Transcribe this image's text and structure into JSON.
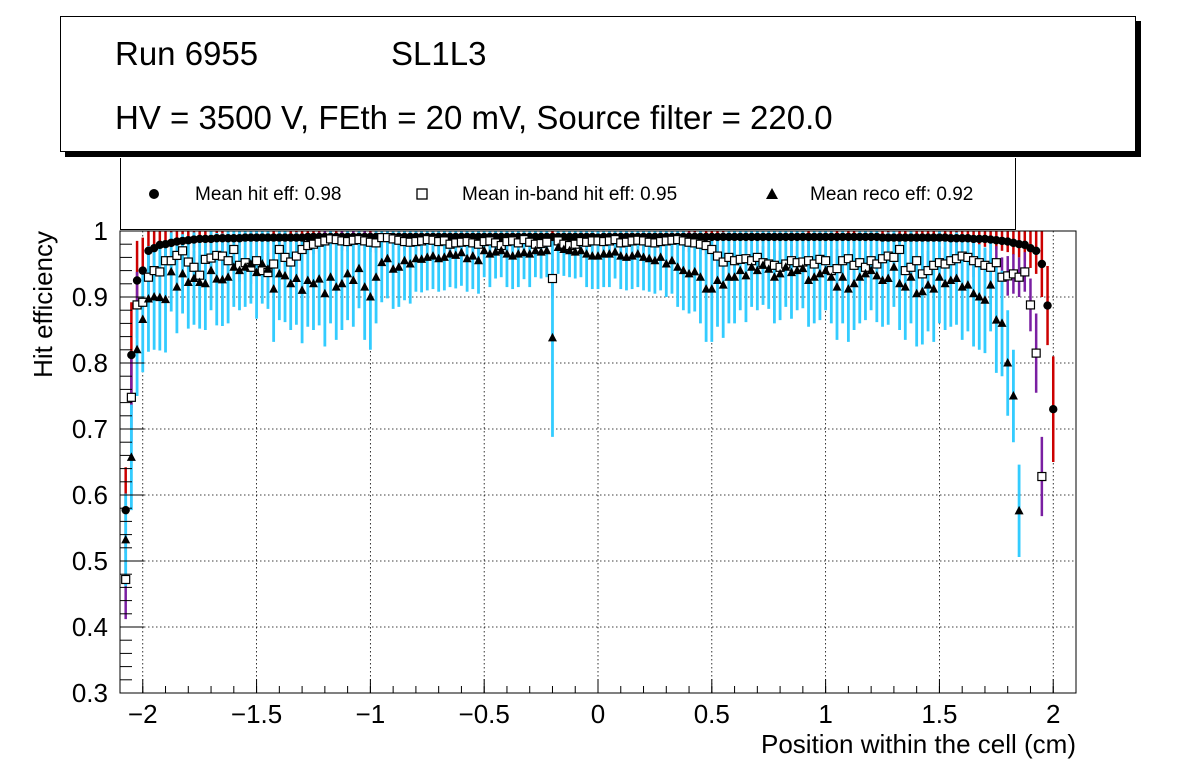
{
  "header": {
    "run_label": "Run 6955",
    "layer_label": "SL1L3",
    "conditions": "HV = 3500 V, FEth = 20 mV, Source filter = 220.0"
  },
  "legend": {
    "hit": "Mean hit  eff: 0.98",
    "inband": "Mean in-band hit eff: 0.95",
    "reco": "Mean reco eff: 0.92"
  },
  "colors": {
    "hit_err": "#cc0000",
    "inband_err": "#7a1fa2",
    "reco_err": "#33ccff",
    "marker": "#000000"
  },
  "chart_data": {
    "type": "scatter",
    "title": "",
    "xlabel": "Position within the cell (cm)",
    "ylabel": "Hit efficiency",
    "xlim": [
      -2.1,
      2.1
    ],
    "ylim": [
      0.3,
      1.0
    ],
    "xticks": [
      -2,
      -1.5,
      -1,
      -0.5,
      0,
      0.5,
      1,
      1.5,
      2
    ],
    "xtick_labels": [
      "−2",
      "−1.5",
      "−1",
      "−0.5",
      "0",
      "0.5",
      "1",
      "1.5",
      "2"
    ],
    "yticks": [
      0.3,
      0.4,
      0.5,
      0.6,
      0.7,
      0.8,
      0.9,
      1.0
    ],
    "ytick_labels": [
      "0.3",
      "0.4",
      "0.5",
      "0.6",
      "0.7",
      "0.8",
      "0.9",
      "1"
    ],
    "grid": true,
    "x": [
      -2.075,
      -2.05,
      -2.025,
      -2.0,
      -1.975,
      -1.95,
      -1.925,
      -1.9,
      -1.875,
      -1.85,
      -1.825,
      -1.8,
      -1.775,
      -1.75,
      -1.725,
      -1.7,
      -1.675,
      -1.65,
      -1.625,
      -1.6,
      -1.575,
      -1.55,
      -1.525,
      -1.5,
      -1.475,
      -1.45,
      -1.425,
      -1.4,
      -1.375,
      -1.35,
      -1.325,
      -1.3,
      -1.275,
      -1.25,
      -1.225,
      -1.2,
      -1.175,
      -1.15,
      -1.125,
      -1.1,
      -1.075,
      -1.05,
      -1.025,
      -1.0,
      -0.975,
      -0.95,
      -0.925,
      -0.9,
      -0.875,
      -0.85,
      -0.825,
      -0.8,
      -0.775,
      -0.75,
      -0.725,
      -0.7,
      -0.675,
      -0.65,
      -0.625,
      -0.6,
      -0.575,
      -0.55,
      -0.525,
      -0.5,
      -0.475,
      -0.45,
      -0.425,
      -0.4,
      -0.375,
      -0.35,
      -0.325,
      -0.3,
      -0.275,
      -0.25,
      -0.225,
      -0.2,
      -0.175,
      -0.15,
      -0.125,
      -0.1,
      -0.075,
      -0.05,
      -0.025,
      0.0,
      0.025,
      0.05,
      0.075,
      0.1,
      0.125,
      0.15,
      0.175,
      0.2,
      0.225,
      0.25,
      0.275,
      0.3,
      0.325,
      0.35,
      0.375,
      0.4,
      0.425,
      0.45,
      0.475,
      0.5,
      0.525,
      0.55,
      0.575,
      0.6,
      0.625,
      0.65,
      0.675,
      0.7,
      0.725,
      0.75,
      0.775,
      0.8,
      0.825,
      0.85,
      0.875,
      0.9,
      0.925,
      0.95,
      0.975,
      1.0,
      1.025,
      1.05,
      1.075,
      1.1,
      1.125,
      1.15,
      1.175,
      1.2,
      1.225,
      1.25,
      1.275,
      1.3,
      1.325,
      1.35,
      1.375,
      1.4,
      1.425,
      1.45,
      1.475,
      1.5,
      1.525,
      1.55,
      1.575,
      1.6,
      1.625,
      1.65,
      1.675,
      1.7,
      1.725,
      1.75,
      1.775,
      1.8,
      1.825,
      1.85,
      1.875,
      1.9,
      1.925,
      1.95,
      1.975,
      2.0,
      2.025,
      2.05,
      2.075
    ],
    "series": [
      {
        "name": "Mean hit  eff: 0.98",
        "marker": "circle",
        "values": [
          0.577,
          0.812,
          0.925,
          0.94,
          0.97,
          0.974,
          0.979,
          0.98,
          0.982,
          0.984,
          0.985,
          0.986,
          0.987,
          0.988,
          0.988,
          0.988,
          0.989,
          0.989,
          0.989,
          0.989,
          0.989,
          0.99,
          0.99,
          0.99,
          0.99,
          0.99,
          0.99,
          0.99,
          0.99,
          0.99,
          0.99,
          0.99,
          0.991,
          0.991,
          0.991,
          0.991,
          0.991,
          0.991,
          0.991,
          0.991,
          0.991,
          0.991,
          0.991,
          0.991,
          0.991,
          0.991,
          0.991,
          0.991,
          0.991,
          0.991,
          0.991,
          0.991,
          0.991,
          0.991,
          0.991,
          0.991,
          0.991,
          0.991,
          0.991,
          0.991,
          0.991,
          0.991,
          0.991,
          0.991,
          0.991,
          0.991,
          0.991,
          0.991,
          0.991,
          0.991,
          0.991,
          0.991,
          0.991,
          0.991,
          0.991,
          0.991,
          0.991,
          0.991,
          0.991,
          0.991,
          0.991,
          0.991,
          0.991,
          0.99,
          0.991,
          0.991,
          0.991,
          0.991,
          0.991,
          0.991,
          0.991,
          0.991,
          0.991,
          0.991,
          0.991,
          0.991,
          0.991,
          0.991,
          0.991,
          0.991,
          0.991,
          0.991,
          0.991,
          0.991,
          0.991,
          0.991,
          0.991,
          0.991,
          0.991,
          0.991,
          0.991,
          0.991,
          0.991,
          0.991,
          0.991,
          0.991,
          0.991,
          0.991,
          0.991,
          0.991,
          0.991,
          0.991,
          0.991,
          0.991,
          0.991,
          0.991,
          0.991,
          0.991,
          0.991,
          0.991,
          0.991,
          0.991,
          0.991,
          0.99,
          0.99,
          0.99,
          0.99,
          0.99,
          0.99,
          0.99,
          0.99,
          0.99,
          0.99,
          0.99,
          0.99,
          0.989,
          0.989,
          0.989,
          0.989,
          0.988,
          0.988,
          0.988,
          0.987,
          0.986,
          0.985,
          0.984,
          0.982,
          0.98,
          0.979,
          0.974,
          0.97,
          0.95,
          0.887,
          0.73
        ],
        "err": [
          0.065,
          0.08,
          0.06,
          0.05,
          0.035,
          0.03,
          0.025,
          0.02,
          0.018,
          0.016,
          0.015,
          0.014,
          0.013,
          0.012,
          0.012,
          0.012,
          0.011,
          0.011,
          0.011,
          0.011,
          0.011,
          0.01,
          0.01,
          0.01,
          0.01,
          0.01,
          0.01,
          0.01,
          0.01,
          0.01,
          0.01,
          0.01,
          0.009,
          0.009,
          0.009,
          0.009,
          0.009,
          0.009,
          0.009,
          0.009,
          0.009,
          0.009,
          0.009,
          0.009,
          0.009,
          0.009,
          0.009,
          0.009,
          0.009,
          0.009,
          0.009,
          0.009,
          0.009,
          0.009,
          0.009,
          0.009,
          0.009,
          0.009,
          0.009,
          0.009,
          0.009,
          0.009,
          0.009,
          0.009,
          0.009,
          0.009,
          0.009,
          0.009,
          0.009,
          0.009,
          0.009,
          0.009,
          0.009,
          0.009,
          0.009,
          0.009,
          0.009,
          0.009,
          0.009,
          0.009,
          0.009,
          0.009,
          0.009,
          0.01,
          0.009,
          0.009,
          0.009,
          0.009,
          0.009,
          0.009,
          0.009,
          0.009,
          0.009,
          0.009,
          0.009,
          0.009,
          0.009,
          0.009,
          0.009,
          0.009,
          0.009,
          0.009,
          0.009,
          0.009,
          0.009,
          0.009,
          0.009,
          0.009,
          0.009,
          0.009,
          0.009,
          0.009,
          0.009,
          0.009,
          0.009,
          0.009,
          0.009,
          0.009,
          0.009,
          0.009,
          0.009,
          0.009,
          0.009,
          0.009,
          0.009,
          0.009,
          0.009,
          0.009,
          0.009,
          0.009,
          0.009,
          0.009,
          0.009,
          0.01,
          0.01,
          0.01,
          0.01,
          0.01,
          0.01,
          0.01,
          0.01,
          0.01,
          0.01,
          0.01,
          0.01,
          0.011,
          0.011,
          0.011,
          0.011,
          0.012,
          0.012,
          0.012,
          0.013,
          0.014,
          0.015,
          0.016,
          0.018,
          0.02,
          0.025,
          0.03,
          0.035,
          0.05,
          0.06,
          0.08
        ]
      },
      {
        "name": "Mean in-band hit eff: 0.95",
        "marker": "open-square",
        "values": [
          0.472,
          0.748,
          0.888,
          0.892,
          0.93,
          0.94,
          0.938,
          0.955,
          0.955,
          0.963,
          0.97,
          0.953,
          0.945,
          0.933,
          0.957,
          0.959,
          0.963,
          0.962,
          0.955,
          0.972,
          0.948,
          0.952,
          0.945,
          0.955,
          0.94,
          0.937,
          0.95,
          0.972,
          0.96,
          0.953,
          0.962,
          0.972,
          0.978,
          0.98,
          0.983,
          0.985,
          0.988,
          0.987,
          0.985,
          0.984,
          0.986,
          0.987,
          0.985,
          0.983,
          0.982,
          0.99,
          0.99,
          0.988,
          0.986,
          0.984,
          0.983,
          0.984,
          0.985,
          0.987,
          0.986,
          0.984,
          0.985,
          0.98,
          0.982,
          0.983,
          0.984,
          0.982,
          0.98,
          0.984,
          0.985,
          0.982,
          0.978,
          0.984,
          0.985,
          0.982,
          0.987,
          0.983,
          0.98,
          0.981,
          0.983,
          0.928,
          0.985,
          0.98,
          0.978,
          0.98,
          0.984,
          0.983,
          0.985,
          0.985,
          0.984,
          0.985,
          0.987,
          0.982,
          0.983,
          0.985,
          0.986,
          0.985,
          0.983,
          0.982,
          0.984,
          0.985,
          0.986,
          0.987,
          0.985,
          0.983,
          0.982,
          0.98,
          0.978,
          0.972,
          0.962,
          0.953,
          0.96,
          0.955,
          0.957,
          0.958,
          0.955,
          0.96,
          0.952,
          0.95,
          0.948,
          0.945,
          0.95,
          0.955,
          0.952,
          0.953,
          0.955,
          0.95,
          0.957,
          0.955,
          0.94,
          0.943,
          0.955,
          0.958,
          0.948,
          0.952,
          0.945,
          0.955,
          0.95,
          0.958,
          0.962,
          0.96,
          0.972,
          0.94,
          0.945,
          0.955,
          0.935,
          0.94,
          0.948,
          0.952,
          0.95,
          0.955,
          0.958,
          0.962,
          0.96,
          0.955,
          0.952,
          0.948,
          0.945,
          0.952,
          0.93,
          0.932,
          0.935,
          0.93,
          0.938,
          0.888,
          0.815,
          0.628
        ],
        "err": [
          0.06,
          0.07,
          0.05,
          0.04,
          0.035,
          0.03,
          0.03,
          0.025,
          0.025,
          0.02,
          0.02,
          0.025,
          0.025,
          0.03,
          0.025,
          0.025,
          0.02,
          0.02,
          0.025,
          0.02,
          0.025,
          0.025,
          0.025,
          0.025,
          0.03,
          0.03,
          0.025,
          0.02,
          0.02,
          0.025,
          0.02,
          0.02,
          0.015,
          0.015,
          0.015,
          0.015,
          0.01,
          0.01,
          0.015,
          0.015,
          0.015,
          0.01,
          0.015,
          0.015,
          0.015,
          0.01,
          0.01,
          0.01,
          0.015,
          0.015,
          0.015,
          0.015,
          0.015,
          0.01,
          0.015,
          0.015,
          0.015,
          0.015,
          0.015,
          0.015,
          0.015,
          0.015,
          0.015,
          0.015,
          0.015,
          0.015,
          0.015,
          0.015,
          0.015,
          0.015,
          0.01,
          0.015,
          0.015,
          0.015,
          0.015,
          0.03,
          0.015,
          0.015,
          0.015,
          0.015,
          0.015,
          0.015,
          0.015,
          0.015,
          0.015,
          0.015,
          0.01,
          0.015,
          0.015,
          0.015,
          0.015,
          0.015,
          0.015,
          0.015,
          0.015,
          0.015,
          0.015,
          0.01,
          0.015,
          0.015,
          0.015,
          0.015,
          0.015,
          0.02,
          0.02,
          0.025,
          0.02,
          0.025,
          0.025,
          0.025,
          0.025,
          0.02,
          0.025,
          0.025,
          0.025,
          0.025,
          0.025,
          0.025,
          0.025,
          0.025,
          0.025,
          0.025,
          0.025,
          0.025,
          0.03,
          0.03,
          0.025,
          0.025,
          0.025,
          0.025,
          0.025,
          0.025,
          0.025,
          0.025,
          0.02,
          0.02,
          0.02,
          0.03,
          0.03,
          0.025,
          0.03,
          0.03,
          0.025,
          0.025,
          0.025,
          0.025,
          0.025,
          0.02,
          0.02,
          0.025,
          0.025,
          0.025,
          0.025,
          0.025,
          0.03,
          0.03,
          0.03,
          0.03,
          0.03,
          0.04,
          0.06,
          0.06
        ]
      },
      {
        "name": "Mean reco eff: 0.92",
        "marker": "triangle",
        "values": [
          0.532,
          0.657,
          0.82,
          0.866,
          0.897,
          0.9,
          0.899,
          0.896,
          0.938,
          0.915,
          0.935,
          0.922,
          0.928,
          0.922,
          0.92,
          0.94,
          0.927,
          0.926,
          0.93,
          0.945,
          0.94,
          0.945,
          0.95,
          0.937,
          0.95,
          0.942,
          0.912,
          0.935,
          0.932,
          0.92,
          0.928,
          0.91,
          0.925,
          0.92,
          0.927,
          0.905,
          0.93,
          0.915,
          0.92,
          0.935,
          0.925,
          0.943,
          0.915,
          0.9,
          0.93,
          0.952,
          0.958,
          0.942,
          0.945,
          0.955,
          0.95,
          0.958,
          0.957,
          0.96,
          0.962,
          0.958,
          0.96,
          0.965,
          0.963,
          0.967,
          0.958,
          0.962,
          0.955,
          0.97,
          0.965,
          0.968,
          0.97,
          0.965,
          0.962,
          0.965,
          0.967,
          0.965,
          0.97,
          0.968,
          0.97,
          0.838,
          0.975,
          0.972,
          0.97,
          0.968,
          0.97,
          0.965,
          0.962,
          0.962,
          0.965,
          0.965,
          0.968,
          0.962,
          0.96,
          0.962,
          0.965,
          0.96,
          0.958,
          0.955,
          0.96,
          0.95,
          0.955,
          0.945,
          0.94,
          0.935,
          0.938,
          0.93,
          0.912,
          0.912,
          0.925,
          0.918,
          0.93,
          0.93,
          0.94,
          0.932,
          0.945,
          0.94,
          0.948,
          0.942,
          0.93,
          0.935,
          0.945,
          0.937,
          0.94,
          0.943,
          0.925,
          0.93,
          0.935,
          0.94,
          0.93,
          0.915,
          0.93,
          0.912,
          0.92,
          0.93,
          0.935,
          0.94,
          0.932,
          0.925,
          0.928,
          0.945,
          0.92,
          0.915,
          0.93,
          0.905,
          0.908,
          0.918,
          0.912,
          0.93,
          0.92,
          0.925,
          0.928,
          0.915,
          0.918,
          0.905,
          0.9,
          0.895,
          0.918,
          0.865,
          0.86,
          0.8,
          0.75,
          0.576
        ],
        "err": [
          0.07,
          0.08,
          0.07,
          0.08,
          0.08,
          0.08,
          0.08,
          0.08,
          0.06,
          0.07,
          0.06,
          0.07,
          0.07,
          0.07,
          0.07,
          0.06,
          0.07,
          0.07,
          0.07,
          0.06,
          0.06,
          0.06,
          0.06,
          0.07,
          0.06,
          0.06,
          0.08,
          0.07,
          0.07,
          0.07,
          0.07,
          0.08,
          0.07,
          0.07,
          0.07,
          0.08,
          0.07,
          0.08,
          0.07,
          0.07,
          0.07,
          0.06,
          0.08,
          0.08,
          0.07,
          0.06,
          0.06,
          0.06,
          0.06,
          0.06,
          0.06,
          0.05,
          0.05,
          0.05,
          0.05,
          0.05,
          0.05,
          0.05,
          0.05,
          0.05,
          0.05,
          0.05,
          0.05,
          0.04,
          0.05,
          0.04,
          0.04,
          0.05,
          0.05,
          0.05,
          0.04,
          0.05,
          0.04,
          0.04,
          0.04,
          0.15,
          0.04,
          0.04,
          0.04,
          0.04,
          0.04,
          0.05,
          0.05,
          0.05,
          0.05,
          0.05,
          0.04,
          0.05,
          0.05,
          0.05,
          0.05,
          0.05,
          0.05,
          0.05,
          0.05,
          0.05,
          0.05,
          0.06,
          0.06,
          0.06,
          0.06,
          0.07,
          0.08,
          0.08,
          0.07,
          0.08,
          0.07,
          0.07,
          0.06,
          0.07,
          0.06,
          0.06,
          0.06,
          0.06,
          0.07,
          0.07,
          0.06,
          0.07,
          0.06,
          0.06,
          0.07,
          0.07,
          0.07,
          0.06,
          0.07,
          0.08,
          0.07,
          0.08,
          0.07,
          0.07,
          0.07,
          0.06,
          0.07,
          0.07,
          0.07,
          0.06,
          0.07,
          0.08,
          0.07,
          0.08,
          0.08,
          0.07,
          0.08,
          0.07,
          0.07,
          0.07,
          0.07,
          0.08,
          0.07,
          0.08,
          0.08,
          0.08,
          0.07,
          0.08,
          0.08,
          0.08,
          0.07,
          0.07
        ]
      }
    ]
  }
}
